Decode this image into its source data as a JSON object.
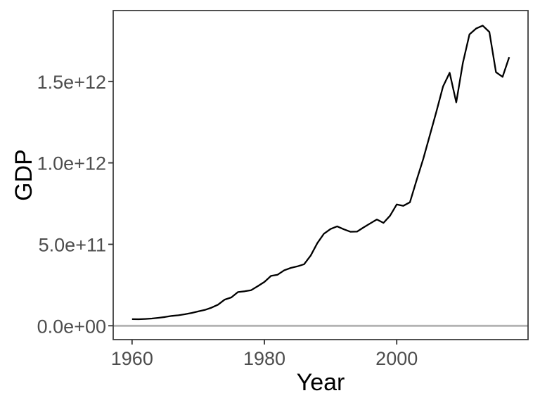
{
  "figure": {
    "background": "#ffffff"
  },
  "chart_data": {
    "type": "line",
    "xlabel": "Year",
    "ylabel": "GDP",
    "grid": false,
    "legend": false,
    "x_axis": {
      "lim": [
        1957.15,
        2019.85
      ],
      "ticks": [
        1960,
        1980,
        2000
      ],
      "tick_labels": [
        "1960",
        "1980",
        "2000"
      ]
    },
    "y_axis": {
      "lim": [
        -85000000000.0,
        1935000000000.0
      ],
      "ticks": [
        0,
        500000000000.0,
        1000000000000.0,
        1500000000000.0
      ],
      "tick_labels": [
        "0.0e+00",
        "5.0e+11",
        "1.0e+12",
        "1.5e+12"
      ]
    },
    "baseline": {
      "y": 0
    },
    "series": [
      {
        "name": "GDP",
        "x": [
          1960,
          1961,
          1962,
          1963,
          1964,
          1965,
          1966,
          1967,
          1968,
          1969,
          1970,
          1971,
          1972,
          1973,
          1974,
          1975,
          1976,
          1977,
          1978,
          1979,
          1980,
          1981,
          1982,
          1983,
          1984,
          1985,
          1986,
          1987,
          1988,
          1989,
          1990,
          1991,
          1992,
          1993,
          1994,
          1995,
          1996,
          1997,
          1998,
          1999,
          2000,
          2001,
          2002,
          2003,
          2004,
          2005,
          2006,
          2007,
          2008,
          2009,
          2010,
          2011,
          2012,
          2013,
          2014,
          2015,
          2016,
          2017
        ],
        "y": [
          40460000000.0,
          40360000000.0,
          41980000000.0,
          44660000000.0,
          48900000000.0,
          53910000000.0,
          60360000000.0,
          64470000000.0,
          70760000000.0,
          78400000000.0,
          87900000000.0,
          97200000000.0,
          111090000000.0,
          129700000000.0,
          160410000000.0,
          173830000000.0,
          206580000000.0,
          211600000000.0,
          218530000000.0,
          243070000000.0,
          269020000000.0,
          306210000000.0,
          313510000000.0,
          340540000000.0,
          355370000000.0,
          364760000000.0,
          377630000000.0,
          431220000000.0,
          507350000000.0,
          565120000000.0,
          593930000000.0,
          610330000000.0,
          592390000000.0,
          577170000000.0,
          578140000000.0,
          604030000000.0,
          628550000000.0,
          652830000000.0,
          631450000000.0,
          676080000000.0,
          744770000000.0,
          736380000000.0,
          757950000000.0,
          892380000000.0,
          1023200000000.0,
          1169400000000.0,
          1315400000000.0,
          1468800000000.0,
          1553000000000.0,
          1371200000000.0,
          1613500000000.0,
          1788700000000.0,
          1824300000000.0,
          1842600000000.0,
          1803500000000.0,
          1556500000000.0,
          1528000000000.0,
          1649300000000.0
        ]
      }
    ],
    "colors": {
      "line": "#000000",
      "baseline": "#b3b3b3",
      "panel_border": "#3d3d3d",
      "tick_mark": "#333333",
      "tick_label": "#4d4d4d",
      "axis_title": "#000000",
      "panel_background": "#ffffff"
    }
  }
}
